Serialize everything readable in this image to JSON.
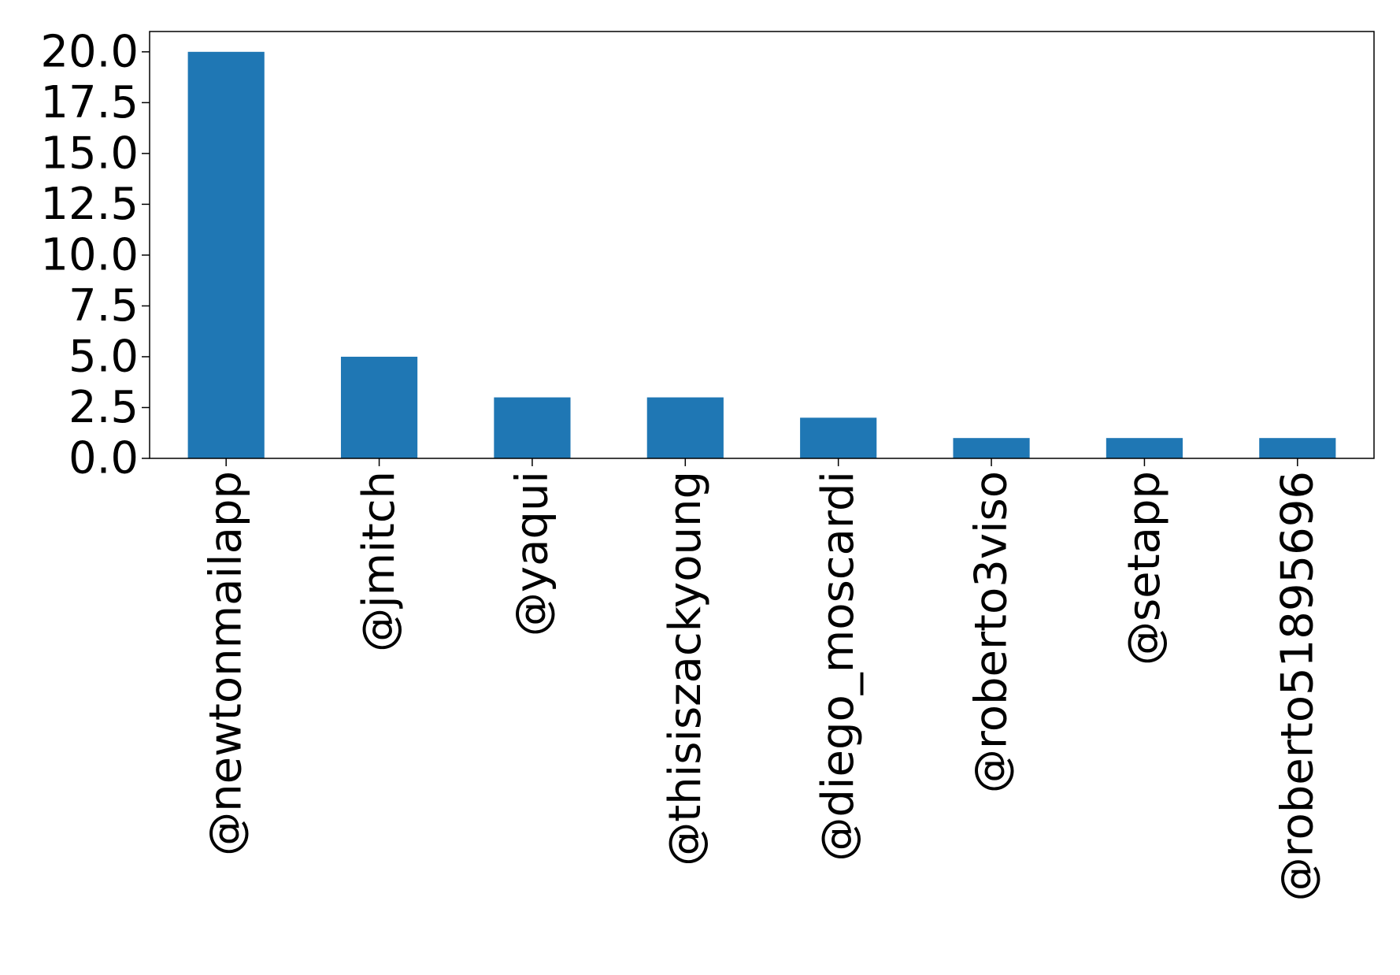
{
  "chart_data": {
    "type": "bar",
    "categories": [
      "@newtonmailapp",
      "@jmitch",
      "@yaqui",
      "@thisiszackyoung",
      "@diego_moscardi",
      "@roberto3viso",
      "@setapp",
      "@roberto51895696"
    ],
    "values": [
      20,
      5,
      3,
      3,
      2,
      1,
      1,
      1
    ],
    "ylim": [
      0,
      21
    ],
    "yticks": [
      0.0,
      2.5,
      5.0,
      7.5,
      10.0,
      12.5,
      15.0,
      17.5,
      20.0
    ],
    "ytick_labels": [
      "0.0",
      "2.5",
      "5.0",
      "7.5",
      "10.0",
      "12.5",
      "15.0",
      "17.5",
      "20.0"
    ],
    "bar_color": "#1f77b4",
    "grid": false,
    "legend": "none",
    "xtick_rotation": "vertical"
  }
}
